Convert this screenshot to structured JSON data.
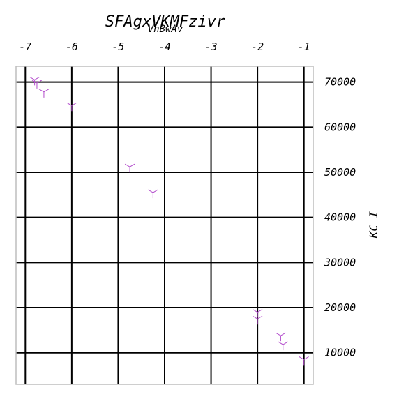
{
  "chart_data": {
    "type": "scatter",
    "title": "SFAgxVKMFzivr",
    "subtitle": "VhBwAv",
    "xlabel": "",
    "ylabel": "KC I",
    "x_ticks": [
      -7,
      -6,
      -5,
      -4,
      -3,
      -2,
      -1
    ],
    "y_ticks": [
      10000,
      20000,
      30000,
      40000,
      50000,
      60000,
      70000
    ],
    "xlim": [
      -7.2,
      -0.8
    ],
    "ylim": [
      3000,
      73500
    ],
    "grid": true,
    "x_axis_position": "top",
    "y_axis_position": "right",
    "marker": "tri-down",
    "marker_color": "#b34dcc",
    "series": [
      {
        "x": [
          -6.8,
          -6.75,
          -6.6,
          -6.0,
          -4.75,
          -4.25,
          -2.0,
          -2.0,
          -1.5,
          -1.45,
          -1.0
        ],
        "y": [
          70500,
          69800,
          67800,
          64800,
          51200,
          45500,
          19000,
          17500,
          13800,
          11800,
          8500
        ]
      }
    ]
  }
}
